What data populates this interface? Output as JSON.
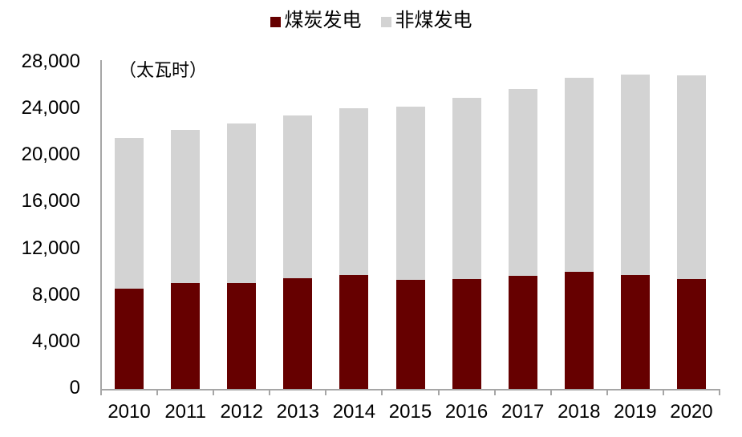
{
  "legend": {
    "items": [
      {
        "label": "煤炭发电",
        "color": "#660000"
      },
      {
        "label": "非煤发电",
        "color": "#d3d3d3"
      }
    ]
  },
  "unit_label": "（太瓦时）",
  "chart_data": {
    "type": "bar",
    "stacked": true,
    "title": "",
    "xlabel": "",
    "ylabel": "（太瓦时）",
    "categories": [
      "2010",
      "2011",
      "2012",
      "2013",
      "2014",
      "2015",
      "2016",
      "2017",
      "2018",
      "2019",
      "2020"
    ],
    "series": [
      {
        "name": "煤炭发电",
        "color": "#660000",
        "values": [
          8600,
          9050,
          9100,
          9500,
          9800,
          9350,
          9450,
          9700,
          10050,
          9800,
          9400
        ]
      },
      {
        "name": "非煤发电",
        "color": "#d3d3d3",
        "values": [
          12900,
          13200,
          13700,
          13950,
          14250,
          14900,
          15500,
          16000,
          16650,
          17200,
          17500
        ]
      }
    ],
    "totals": [
      21500,
      22250,
      22800,
      23450,
      24050,
      24250,
      24950,
      25700,
      26700,
      27000,
      26900
    ],
    "ylim": [
      0,
      28000
    ],
    "ytick_step": 4000,
    "ytick_labels": [
      "0",
      "4,000",
      "8,000",
      "12,000",
      "16,000",
      "20,000",
      "24,000",
      "28,000"
    ],
    "grid": false,
    "legend_position": "top-center",
    "axis_color": "#a6a6a6"
  }
}
